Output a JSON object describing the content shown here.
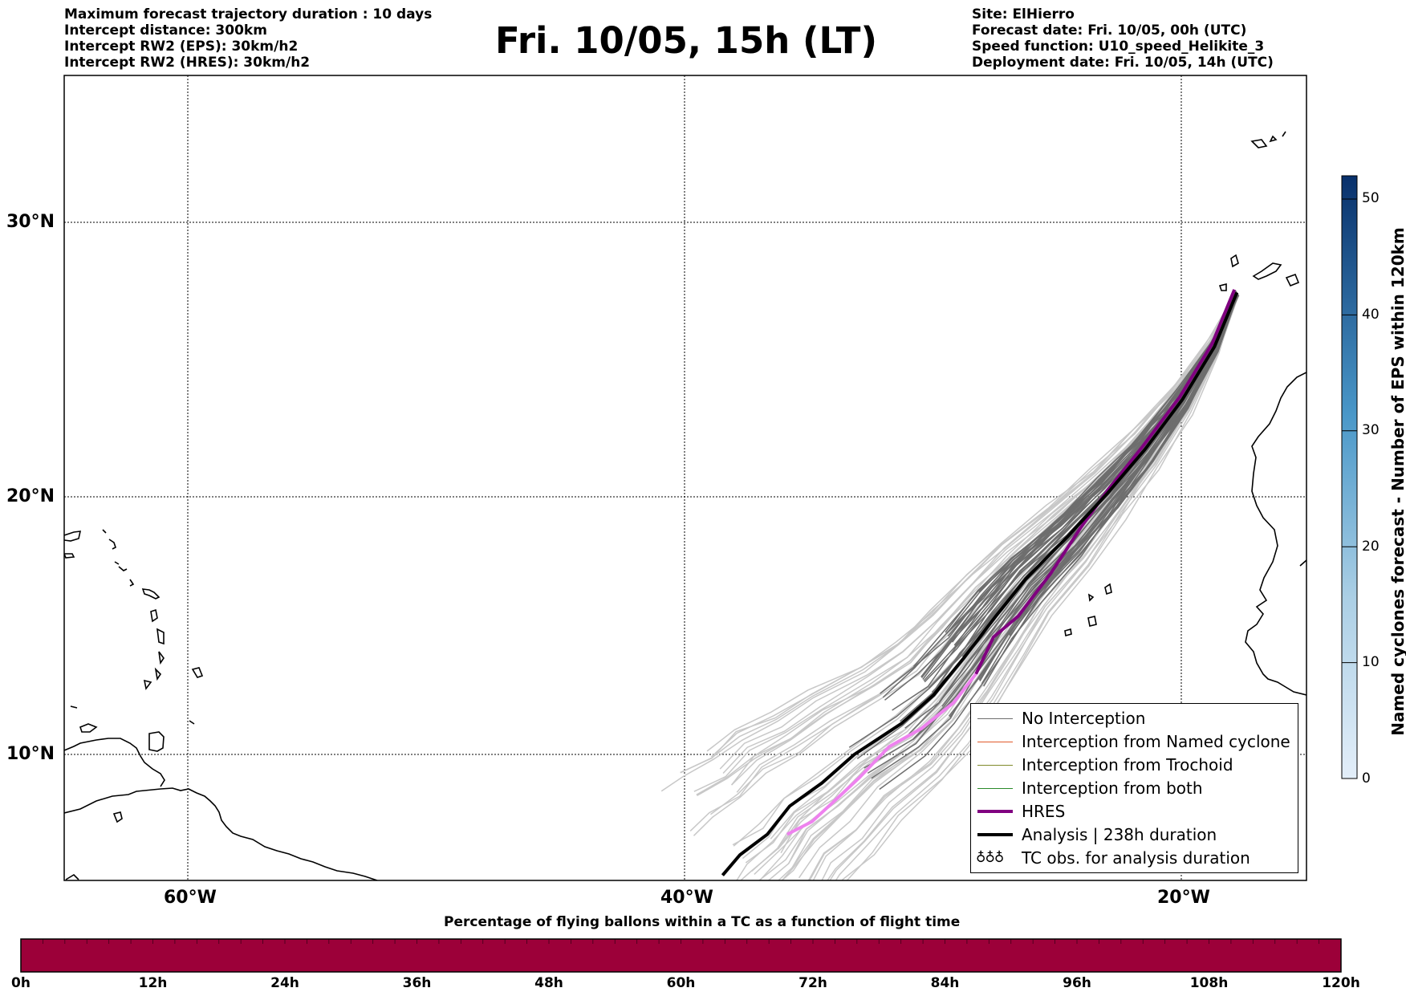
{
  "header": {
    "left_lines": [
      "Maximum forecast trajectory duration : 10 days",
      "Intercept distance: 300km",
      "Intercept RW2 (EPS):  30km/h2",
      "Intercept RW2 (HRES): 30km/h2"
    ],
    "title": "Fri. 10/05, 15h (LT)",
    "right_lines": [
      "Site: ElHierro",
      "Forecast date: Fri. 10/05, 00h (UTC)",
      "Speed function: U10_speed_Helikite_3",
      "Deployment date: Fri. 10/05, 14h (UTC)"
    ]
  },
  "map": {
    "lat_labels": [
      "30°N",
      "20°N",
      "10°N"
    ],
    "lon_labels": [
      "60°W",
      "40°W",
      "20°W"
    ],
    "extent": {
      "lon_min": -65,
      "lon_max": -15,
      "lat_min": 5.4,
      "lat_max": 34.7
    },
    "analysis_track": [
      [
        -38.5,
        5.6
      ],
      [
        -37.8,
        6.4
      ],
      [
        -36.7,
        7.2
      ],
      [
        -35.8,
        8.3
      ],
      [
        -34.5,
        9.2
      ],
      [
        -33.2,
        10.3
      ],
      [
        -31.3,
        11.5
      ],
      [
        -30.0,
        12.6
      ],
      [
        -28.8,
        14.0
      ],
      [
        -27.5,
        15.6
      ],
      [
        -26.3,
        17.0
      ],
      [
        -24.6,
        18.6
      ],
      [
        -23.0,
        20.2
      ],
      [
        -21.5,
        21.8
      ],
      [
        -20.0,
        23.6
      ],
      [
        -18.7,
        25.5
      ],
      [
        -17.8,
        27.4
      ]
    ],
    "hres_track": [
      [
        -35.9,
        7.2
      ],
      [
        -34.9,
        7.7
      ],
      [
        -34.0,
        8.5
      ],
      [
        -33.0,
        9.4
      ],
      [
        -31.8,
        10.6
      ],
      [
        -30.5,
        11.3
      ],
      [
        -29.2,
        12.3
      ],
      [
        -28.3,
        13.4
      ],
      [
        -27.6,
        14.8
      ],
      [
        -26.6,
        15.6
      ],
      [
        -25.3,
        17.2
      ],
      [
        -24.1,
        18.9
      ],
      [
        -23.0,
        20.3
      ],
      [
        -21.6,
        21.9
      ],
      [
        -20.1,
        23.7
      ],
      [
        -18.8,
        25.6
      ],
      [
        -17.9,
        27.5
      ]
    ],
    "colors": {
      "no_interception": "#6e6e6e",
      "no_interception_light": "#c8c8c8",
      "named_cyclone": "#e05a2b",
      "trochoid": "#808a2a",
      "both": "#2a8a2a",
      "hres": "#800080",
      "hres_light": "#ee82ee",
      "analysis": "#000000"
    }
  },
  "legend": {
    "items": [
      {
        "label": "No Interception",
        "style": "thin-grey"
      },
      {
        "label": "Interception from Named cyclone",
        "style": "thin-orange"
      },
      {
        "label": "Interception from Trochoid",
        "style": "thin-olive"
      },
      {
        "label": "Interception from both",
        "style": "thin-green"
      },
      {
        "label": "HRES",
        "style": "thick-purple"
      },
      {
        "label": "Analysis | 238h duration",
        "style": "thick-black"
      },
      {
        "label": "TC obs. for analysis duration",
        "style": "cyclone-symbols",
        "symbol": "♁♁♁"
      }
    ]
  },
  "colorbar": {
    "label": "Named cyclones forecast - Number of EPS within 120km",
    "ticks": [
      "0",
      "10",
      "20",
      "30",
      "40",
      "50"
    ],
    "range": [
      0,
      52
    ],
    "color_low": "#e3eef9",
    "color_high": "#08306b"
  },
  "time_bar": {
    "caption": "Percentage of flying ballons within a TC as a function of flight time",
    "hour_labels": [
      "0h",
      "12h",
      "24h",
      "36h",
      "48h",
      "60h",
      "72h",
      "84h",
      "96h",
      "108h",
      "120h"
    ],
    "fill_color": "#9c0039",
    "percent_values": [
      0,
      0,
      0,
      0,
      0,
      0,
      0,
      0,
      0,
      0,
      0,
      0,
      0,
      0,
      0,
      0,
      0,
      0,
      0,
      0,
      0,
      0,
      0,
      0,
      0,
      0,
      0,
      0,
      0,
      0,
      0,
      0,
      0,
      0,
      0,
      0,
      0,
      0,
      0,
      0,
      0,
      0,
      0,
      0,
      0,
      0,
      0,
      0,
      0,
      0,
      0,
      0,
      0,
      0,
      0,
      0,
      0,
      0,
      0,
      0
    ]
  }
}
